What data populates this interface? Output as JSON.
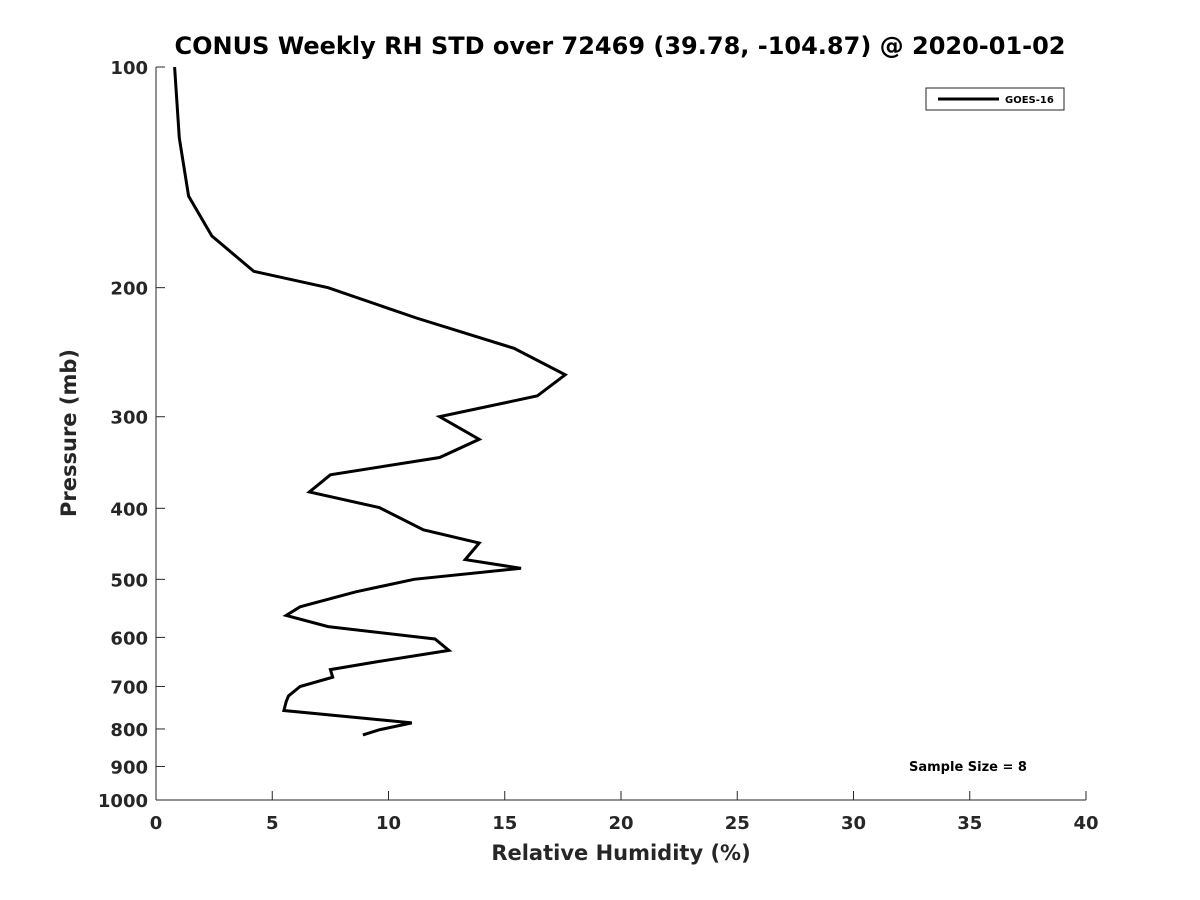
{
  "chart_data": {
    "type": "line",
    "title": "CONUS Weekly RH STD over 72469 (39.78, -104.87) @ 2020-01-02",
    "xlabel": "Relative Humidity (%)",
    "ylabel": "Pressure (mb)",
    "xlim": [
      0,
      40
    ],
    "ylim": [
      100,
      1000
    ],
    "y_scale": "log",
    "y_reversed": true,
    "x_ticks": [
      "0",
      "5",
      "10",
      "15",
      "20",
      "25",
      "30",
      "35",
      "40"
    ],
    "y_ticks": [
      "100",
      "200",
      "300",
      "400",
      "500",
      "600",
      "700",
      "800",
      "900",
      "1000"
    ],
    "grid": false,
    "legend_position": "top-right",
    "annotation": "Sample Size = 8",
    "series": [
      {
        "name": "GOES-16",
        "color": "#000000",
        "x": [
          0.8,
          1.0,
          1.4,
          2.4,
          4.2,
          7.4,
          11.2,
          15.4,
          17.6,
          16.4,
          12.2,
          13.9,
          12.2,
          7.5,
          6.6,
          9.6,
          11.5,
          13.9,
          13.3,
          15.7,
          11.1,
          8.6,
          6.2,
          5.6,
          7.4,
          12.0,
          12.6,
          9.6,
          7.5,
          7.6,
          6.2,
          5.7,
          5.6,
          5.5,
          11.0,
          9.6,
          8.9
        ],
        "y": [
          100,
          125,
          150,
          170,
          190,
          200,
          220,
          242,
          263,
          281,
          300,
          322,
          341,
          360,
          380,
          399,
          428,
          446,
          470,
          483,
          500,
          520,
          545,
          560,
          580,
          603,
          625,
          647,
          664,
          680,
          700,
          721,
          734,
          755,
          785,
          802,
          815
        ]
      }
    ]
  }
}
